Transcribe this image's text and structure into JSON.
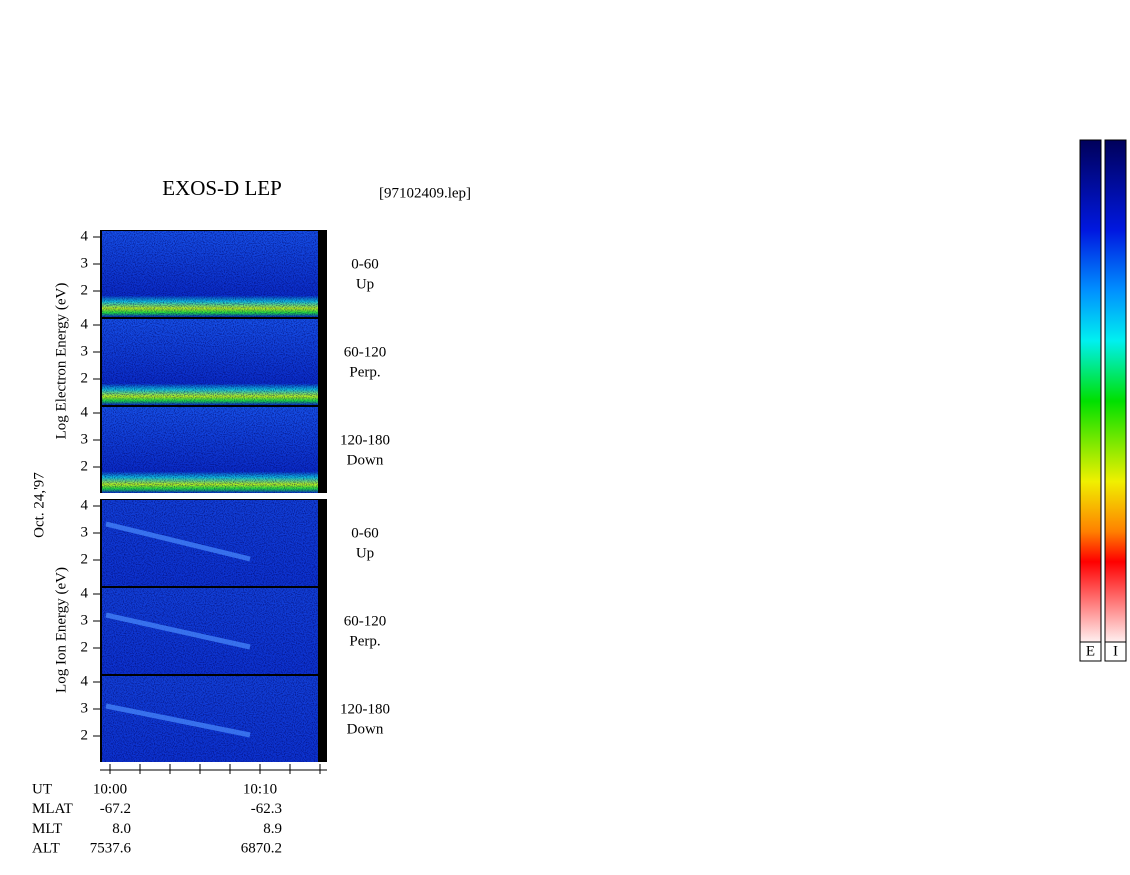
{
  "title": "EXOS-D LEP",
  "file": "[97102409.lep]",
  "date": "Oct. 24,'97",
  "electron": {
    "axis_label": "Log  Electron  Energy (eV)",
    "yticks": [
      "4",
      "3",
      "2"
    ],
    "panels": [
      {
        "range": "0-60",
        "direction": "Up"
      },
      {
        "range": "60-120",
        "direction": "Perp."
      },
      {
        "range": "120-180",
        "direction": "Down"
      }
    ]
  },
  "ion": {
    "axis_label": "Log  Ion  Energy (eV)",
    "yticks": [
      "4",
      "3",
      "2"
    ],
    "panels": [
      {
        "range": "0-60",
        "direction": "Up"
      },
      {
        "range": "60-120",
        "direction": "Perp."
      },
      {
        "range": "120-180",
        "direction": "Down"
      }
    ]
  },
  "time_axis": {
    "rows": [
      {
        "label": "UT",
        "values": [
          "10:00",
          "10:10"
        ]
      },
      {
        "label": "MLAT",
        "values": [
          "-67.2",
          "-62.3"
        ]
      },
      {
        "label": "MLT",
        "values": [
          "8.0",
          "8.9"
        ]
      },
      {
        "label": "ALT",
        "values": [
          "7537.6",
          "6870.2"
        ]
      }
    ]
  },
  "colorbars": [
    "E",
    "I"
  ]
}
